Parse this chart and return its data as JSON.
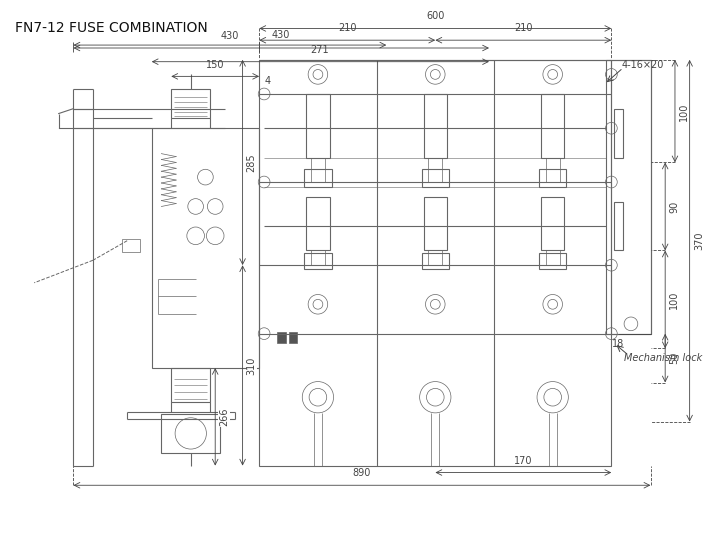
{
  "title": "FN7-12 FUSE COMBINATION",
  "title_fontsize": 10,
  "line_color": "#666666",
  "dim_color": "#444444",
  "bg_color": "#ffffff",
  "fig_width": 7.17,
  "fig_height": 5.45
}
